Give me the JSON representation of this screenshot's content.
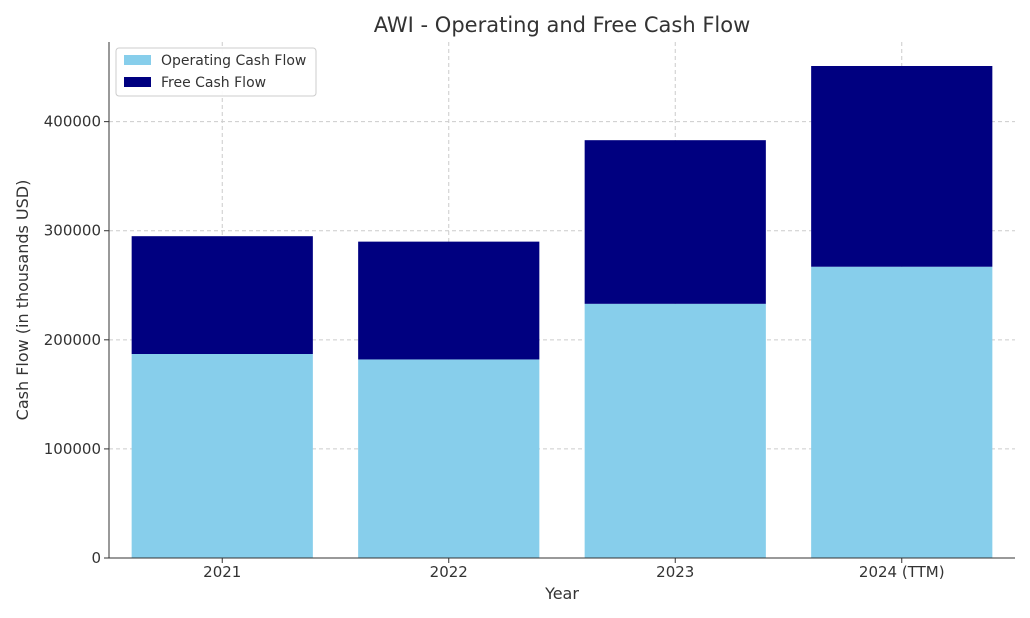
{
  "chart_data": {
    "type": "bar",
    "stacked": true,
    "title": "AWI - Operating and Free Cash Flow",
    "xlabel": "Year",
    "ylabel": "Cash Flow (in thousands USD)",
    "categories": [
      "2021",
      "2022",
      "2023",
      "2024 (TTM)"
    ],
    "series": [
      {
        "name": "Operating Cash Flow",
        "color": "#87ceeb",
        "values": [
          187000,
          182000,
          233000,
          267000
        ]
      },
      {
        "name": "Free Cash Flow",
        "color": "#000080",
        "values": [
          108000,
          108000,
          150000,
          184000
        ]
      }
    ],
    "ylim": [
      0,
      473000
    ],
    "yticks": [
      0,
      100000,
      200000,
      300000,
      400000
    ],
    "ytick_labels": [
      "0",
      "100000",
      "200000",
      "300000",
      "400000"
    ],
    "grid": true,
    "legend_position": "top-left"
  }
}
